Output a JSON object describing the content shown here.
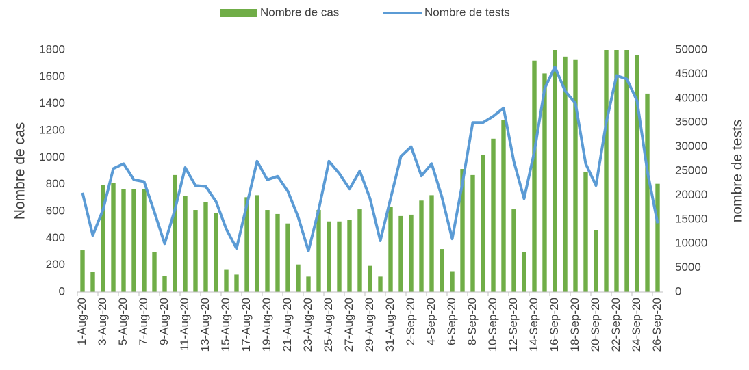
{
  "chart_data": {
    "type": "bar-line",
    "categories": [
      "1-Aug-20",
      null,
      "3-Aug-20",
      null,
      "5-Aug-20",
      null,
      "7-Aug-20",
      null,
      "9-Aug-20",
      null,
      "11-Aug-20",
      null,
      "13-Aug-20",
      null,
      "15-Aug-20",
      null,
      "17-Aug-20",
      null,
      "19-Aug-20",
      null,
      "21-Aug-20",
      null,
      "23-Aug-20",
      null,
      "25-Aug-20",
      null,
      "27-Aug-20",
      null,
      "29-Aug-20",
      null,
      "31-Aug-20",
      null,
      "2-Sep-20",
      null,
      "4-Sep-20",
      null,
      "6-Sep-20",
      null,
      "8-Sep-20",
      null,
      "10-Sep-20",
      null,
      "12-Sep-20",
      null,
      "14-Sep-20",
      null,
      "16-Sep-20",
      null,
      "18-Sep-20",
      null,
      "20-Sep-20",
      null,
      "22-Sep-20",
      null,
      "24-Sep-20",
      null,
      "26-Sep-20"
    ],
    "series": [
      {
        "name": "Nombre de cas",
        "type": "bar",
        "color": "#70ad47",
        "values": [
          310,
          150,
          795,
          810,
          765,
          765,
          765,
          300,
          120,
          870,
          715,
          610,
          670,
          585,
          165,
          130,
          705,
          720,
          610,
          580,
          510,
          205,
          115,
          610,
          525,
          525,
          535,
          615,
          195,
          115,
          635,
          565,
          575,
          680,
          720,
          320,
          155,
          915,
          870,
          1020,
          1140,
          1280,
          615,
          300,
          1720,
          1625,
          1800,
          1750,
          1730,
          895,
          460,
          1800,
          1800,
          1800,
          1760,
          1475,
          805
        ]
      },
      {
        "name": "Nombre de tests",
        "type": "line",
        "axis": "y2",
        "color": "#5b9bd5",
        "values": [
          20500,
          11700,
          17000,
          25500,
          26500,
          23200,
          22800,
          16500,
          10000,
          17000,
          25700,
          22000,
          21800,
          18700,
          13000,
          9000,
          18000,
          27000,
          23200,
          23900,
          20800,
          15500,
          8500,
          17000,
          27000,
          24500,
          21300,
          25000,
          19300,
          10600,
          19300,
          28000,
          30000,
          24000,
          26500,
          19600,
          11000,
          22500,
          35000,
          35000,
          36300,
          38000,
          27000,
          19300,
          29000,
          42000,
          46500,
          41500,
          39000,
          26500,
          22000,
          35000,
          44700,
          44000,
          39500,
          25000,
          14200
        ]
      }
    ],
    "ylabel": "Nombre de cas",
    "y2label": "nombre de tests",
    "ylim": [
      0,
      1800
    ],
    "yticks": [
      0,
      200,
      400,
      600,
      800,
      1000,
      1200,
      1400,
      1600,
      1800
    ],
    "y2lim": [
      0,
      50000
    ],
    "y2ticks": [
      0,
      5000,
      10000,
      15000,
      20000,
      25000,
      30000,
      35000,
      40000,
      45000,
      50000
    ],
    "legend": "top"
  }
}
